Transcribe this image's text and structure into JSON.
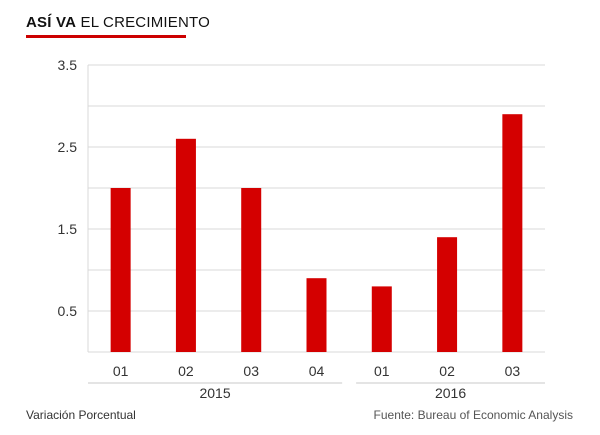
{
  "header": {
    "title_bold": "ASÍ VA",
    "title_rest": "EL CRECIMIENTO"
  },
  "chart_data": {
    "type": "bar",
    "title": "ASÍ VA EL CRECIMIENTO",
    "xlabel": "",
    "ylabel": "",
    "ylim": [
      0,
      3.5
    ],
    "yticks": [
      "3.5",
      "2.5",
      "1.5",
      "0.5"
    ],
    "ytick_values": [
      3.5,
      2.5,
      1.5,
      0.5
    ],
    "grid": true,
    "bar_color": "#d40000",
    "groups": [
      {
        "label": "2015",
        "categories": [
          "01",
          "02",
          "03",
          "04"
        ]
      },
      {
        "label": "2016",
        "categories": [
          "01",
          "02",
          "03"
        ]
      }
    ],
    "categories": [
      "01",
      "02",
      "03",
      "04",
      "01",
      "02",
      "03"
    ],
    "values": [
      2.0,
      2.6,
      2.0,
      0.9,
      0.8,
      1.4,
      2.9
    ]
  },
  "footer": {
    "left": "Variación Porcentual",
    "right": "Fuente: Bureau of Economic Analysis"
  }
}
